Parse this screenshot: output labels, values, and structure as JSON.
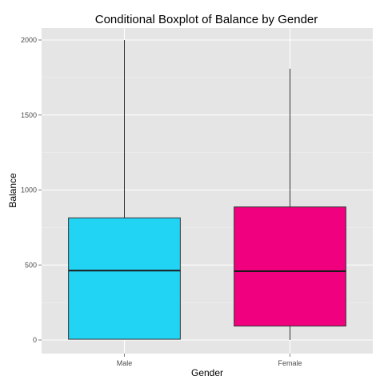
{
  "chart_data": {
    "type": "boxplot",
    "title": "Conditional Boxplot of Balance by Gender",
    "xlabel": "Gender",
    "ylabel": "Balance",
    "categories": [
      "Male",
      "Female"
    ],
    "ylim": [
      -90,
      2000
    ],
    "y_ticks": [
      0,
      500,
      1000,
      1500,
      2000
    ],
    "y_tick_labels": [
      "0",
      "500",
      "1000",
      "1500",
      "2000"
    ],
    "grid": true,
    "legend": "none",
    "boxes": [
      {
        "category": "Male",
        "whisker_low": 5,
        "q1": 5,
        "median": 463,
        "q3": 814,
        "whisker_high": 2000,
        "color": "#21D4F4"
      },
      {
        "category": "Female",
        "whisker_low": 0,
        "q1": 93,
        "median": 459,
        "q3": 887,
        "whisker_high": 1809,
        "color": "#F0007E"
      }
    ],
    "colors": {
      "panel": "#E5E5E5",
      "grid_major": "#FFFFFF",
      "grid_minor": "#F2F2F2",
      "box_outline": "#333333"
    }
  }
}
